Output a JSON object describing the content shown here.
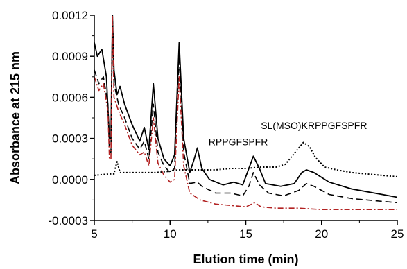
{
  "chart_data": {
    "type": "line",
    "xlabel": "Elution time (min)",
    "ylabel": "Absorbance at 215 nm",
    "xlim": [
      5,
      25
    ],
    "ylim": [
      -0.0003,
      0.0012
    ],
    "x_ticks": [
      "5",
      "10",
      "15",
      "20",
      "25"
    ],
    "y_ticks": [
      "0.0012",
      "0.0009",
      "0.0006",
      "0.0003",
      "0.0000",
      "-0.0003"
    ],
    "grid": false,
    "annotations": [
      {
        "text": "SL(MSO)KRPPGFSPFR",
        "x": 19.5,
        "y": 0.00037
      },
      {
        "text": "RPPGFSPFR",
        "x": 14.5,
        "y": 0.00025
      }
    ],
    "series": [
      {
        "style": "solid",
        "color": "#000000",
        "points": [
          [
            5,
            0.001
          ],
          [
            5.2,
            0.0009
          ],
          [
            5.5,
            0.00095
          ],
          [
            5.8,
            0.00075
          ],
          [
            6.0,
            0.0003
          ],
          [
            6.1,
            0.0003
          ],
          [
            6.2,
            0.0012
          ],
          [
            6.3,
            0.0008
          ],
          [
            6.5,
            0.00062
          ],
          [
            6.7,
            0.00068
          ],
          [
            7.0,
            0.00055
          ],
          [
            7.5,
            0.0004
          ],
          [
            8.0,
            0.00028
          ],
          [
            8.3,
            0.00038
          ],
          [
            8.6,
            0.00022
          ],
          [
            8.9,
            0.0007
          ],
          [
            9.2,
            0.0003
          ],
          [
            9.6,
            0.00015
          ],
          [
            10.0,
            0.0001
          ],
          [
            10.3,
            0.00018
          ],
          [
            10.6,
            0.001
          ],
          [
            10.9,
            0.0003
          ],
          [
            11.3,
            5e-05
          ],
          [
            11.6,
            0.00015
          ],
          [
            11.8,
            0.00023
          ],
          [
            12.1,
            8e-05
          ],
          [
            12.6,
            0.0
          ],
          [
            13.5,
            -4e-05
          ],
          [
            14.2,
            -2e-05
          ],
          [
            14.8,
            -4e-05
          ],
          [
            15.2,
            8e-05
          ],
          [
            15.5,
            0.00017
          ],
          [
            15.9,
            8e-05
          ],
          [
            16.3,
            -3e-05
          ],
          [
            17.3,
            -5e-05
          ],
          [
            18.2,
            -3e-05
          ],
          [
            18.7,
            5e-05
          ],
          [
            19.0,
            7e-05
          ],
          [
            19.5,
            5e-05
          ],
          [
            20.5,
            -2e-05
          ],
          [
            22.0,
            -7e-05
          ],
          [
            24.0,
            -0.00011
          ],
          [
            25.0,
            -0.00013
          ]
        ]
      },
      {
        "style": "dashed",
        "color": "#000000",
        "points": [
          [
            5,
            0.0008
          ],
          [
            5.3,
            0.0007
          ],
          [
            5.6,
            0.00075
          ],
          [
            5.9,
            0.00055
          ],
          [
            6.0,
            0.0002
          ],
          [
            6.1,
            0.0002
          ],
          [
            6.2,
            0.0012
          ],
          [
            6.3,
            0.0007
          ],
          [
            6.6,
            0.00055
          ],
          [
            7.0,
            0.00045
          ],
          [
            7.5,
            0.0003
          ],
          [
            8.0,
            0.00022
          ],
          [
            8.3,
            0.00028
          ],
          [
            8.6,
            0.00015
          ],
          [
            8.9,
            0.00055
          ],
          [
            9.2,
            0.0002
          ],
          [
            9.6,
            0.0001
          ],
          [
            10.0,
            5e-05
          ],
          [
            10.3,
            8e-05
          ],
          [
            10.6,
            0.0009
          ],
          [
            10.9,
            0.0002
          ],
          [
            11.3,
            -3e-05
          ],
          [
            11.8,
            -2e-05
          ],
          [
            12.1,
            -5e-05
          ],
          [
            13.0,
            -0.0001
          ],
          [
            14.0,
            -0.0001
          ],
          [
            14.8,
            -0.00012
          ],
          [
            15.2,
            -5e-05
          ],
          [
            15.5,
            5e-05
          ],
          [
            15.9,
            -4e-05
          ],
          [
            16.5,
            -0.0001
          ],
          [
            17.5,
            -0.00012
          ],
          [
            18.5,
            -8e-05
          ],
          [
            19.0,
            -3e-05
          ],
          [
            19.5,
            -5e-05
          ],
          [
            20.5,
            -0.00011
          ],
          [
            22.0,
            -0.00014
          ],
          [
            24.0,
            -0.00016
          ],
          [
            25.0,
            -0.00017
          ]
        ]
      },
      {
        "style": "dash-dot",
        "color": "#b22222",
        "points": [
          [
            5,
            0.00075
          ],
          [
            5.3,
            0.00065
          ],
          [
            5.6,
            0.0007
          ],
          [
            5.9,
            0.0005
          ],
          [
            6.0,
            0.00015
          ],
          [
            6.1,
            0.00015
          ],
          [
            6.2,
            0.0012
          ],
          [
            6.3,
            0.0006
          ],
          [
            6.6,
            0.0005
          ],
          [
            7.0,
            0.0004
          ],
          [
            7.5,
            0.00025
          ],
          [
            8.0,
            0.00018
          ],
          [
            8.3,
            0.0002
          ],
          [
            8.6,
            0.0001
          ],
          [
            8.9,
            0.00045
          ],
          [
            9.2,
            0.00012
          ],
          [
            9.6,
            3e-05
          ],
          [
            10.0,
            -2e-05
          ],
          [
            10.3,
            0.0
          ],
          [
            10.6,
            0.00075
          ],
          [
            10.9,
            0.0001
          ],
          [
            11.3,
            -0.0001
          ],
          [
            12.0,
            -0.00015
          ],
          [
            13.0,
            -0.00018
          ],
          [
            14.0,
            -0.00019
          ],
          [
            15.0,
            -0.0002
          ],
          [
            15.6,
            -0.00017
          ],
          [
            16.0,
            -0.0002
          ],
          [
            17.0,
            -0.00021
          ],
          [
            18.5,
            -0.00021
          ],
          [
            20.0,
            -0.00022
          ],
          [
            22.0,
            -0.00022
          ],
          [
            25.0,
            -0.00022
          ]
        ]
      },
      {
        "style": "dotted",
        "color": "#000000",
        "points": [
          [
            5,
            3e-05
          ],
          [
            6.0,
            4e-05
          ],
          [
            6.3,
            4e-05
          ],
          [
            6.5,
            0.00013
          ],
          [
            6.7,
            5e-05
          ],
          [
            7.5,
            5e-05
          ],
          [
            9.0,
            5e-05
          ],
          [
            10.0,
            6e-05
          ],
          [
            10.5,
            7e-05
          ],
          [
            11.0,
            7e-05
          ],
          [
            12.0,
            7e-05
          ],
          [
            13.0,
            7e-05
          ],
          [
            14.0,
            8e-05
          ],
          [
            15.0,
            8e-05
          ],
          [
            16.0,
            9e-05
          ],
          [
            17.0,
            9e-05
          ],
          [
            17.6,
            0.00011
          ],
          [
            18.2,
            0.00019
          ],
          [
            18.8,
            0.00027
          ],
          [
            19.2,
            0.00024
          ],
          [
            19.6,
            0.00016
          ],
          [
            20.2,
            9e-05
          ],
          [
            21.0,
            7e-05
          ],
          [
            22.0,
            5e-05
          ],
          [
            23.0,
            4e-05
          ],
          [
            24.0,
            3e-05
          ],
          [
            25.0,
            2e-05
          ]
        ]
      }
    ]
  }
}
